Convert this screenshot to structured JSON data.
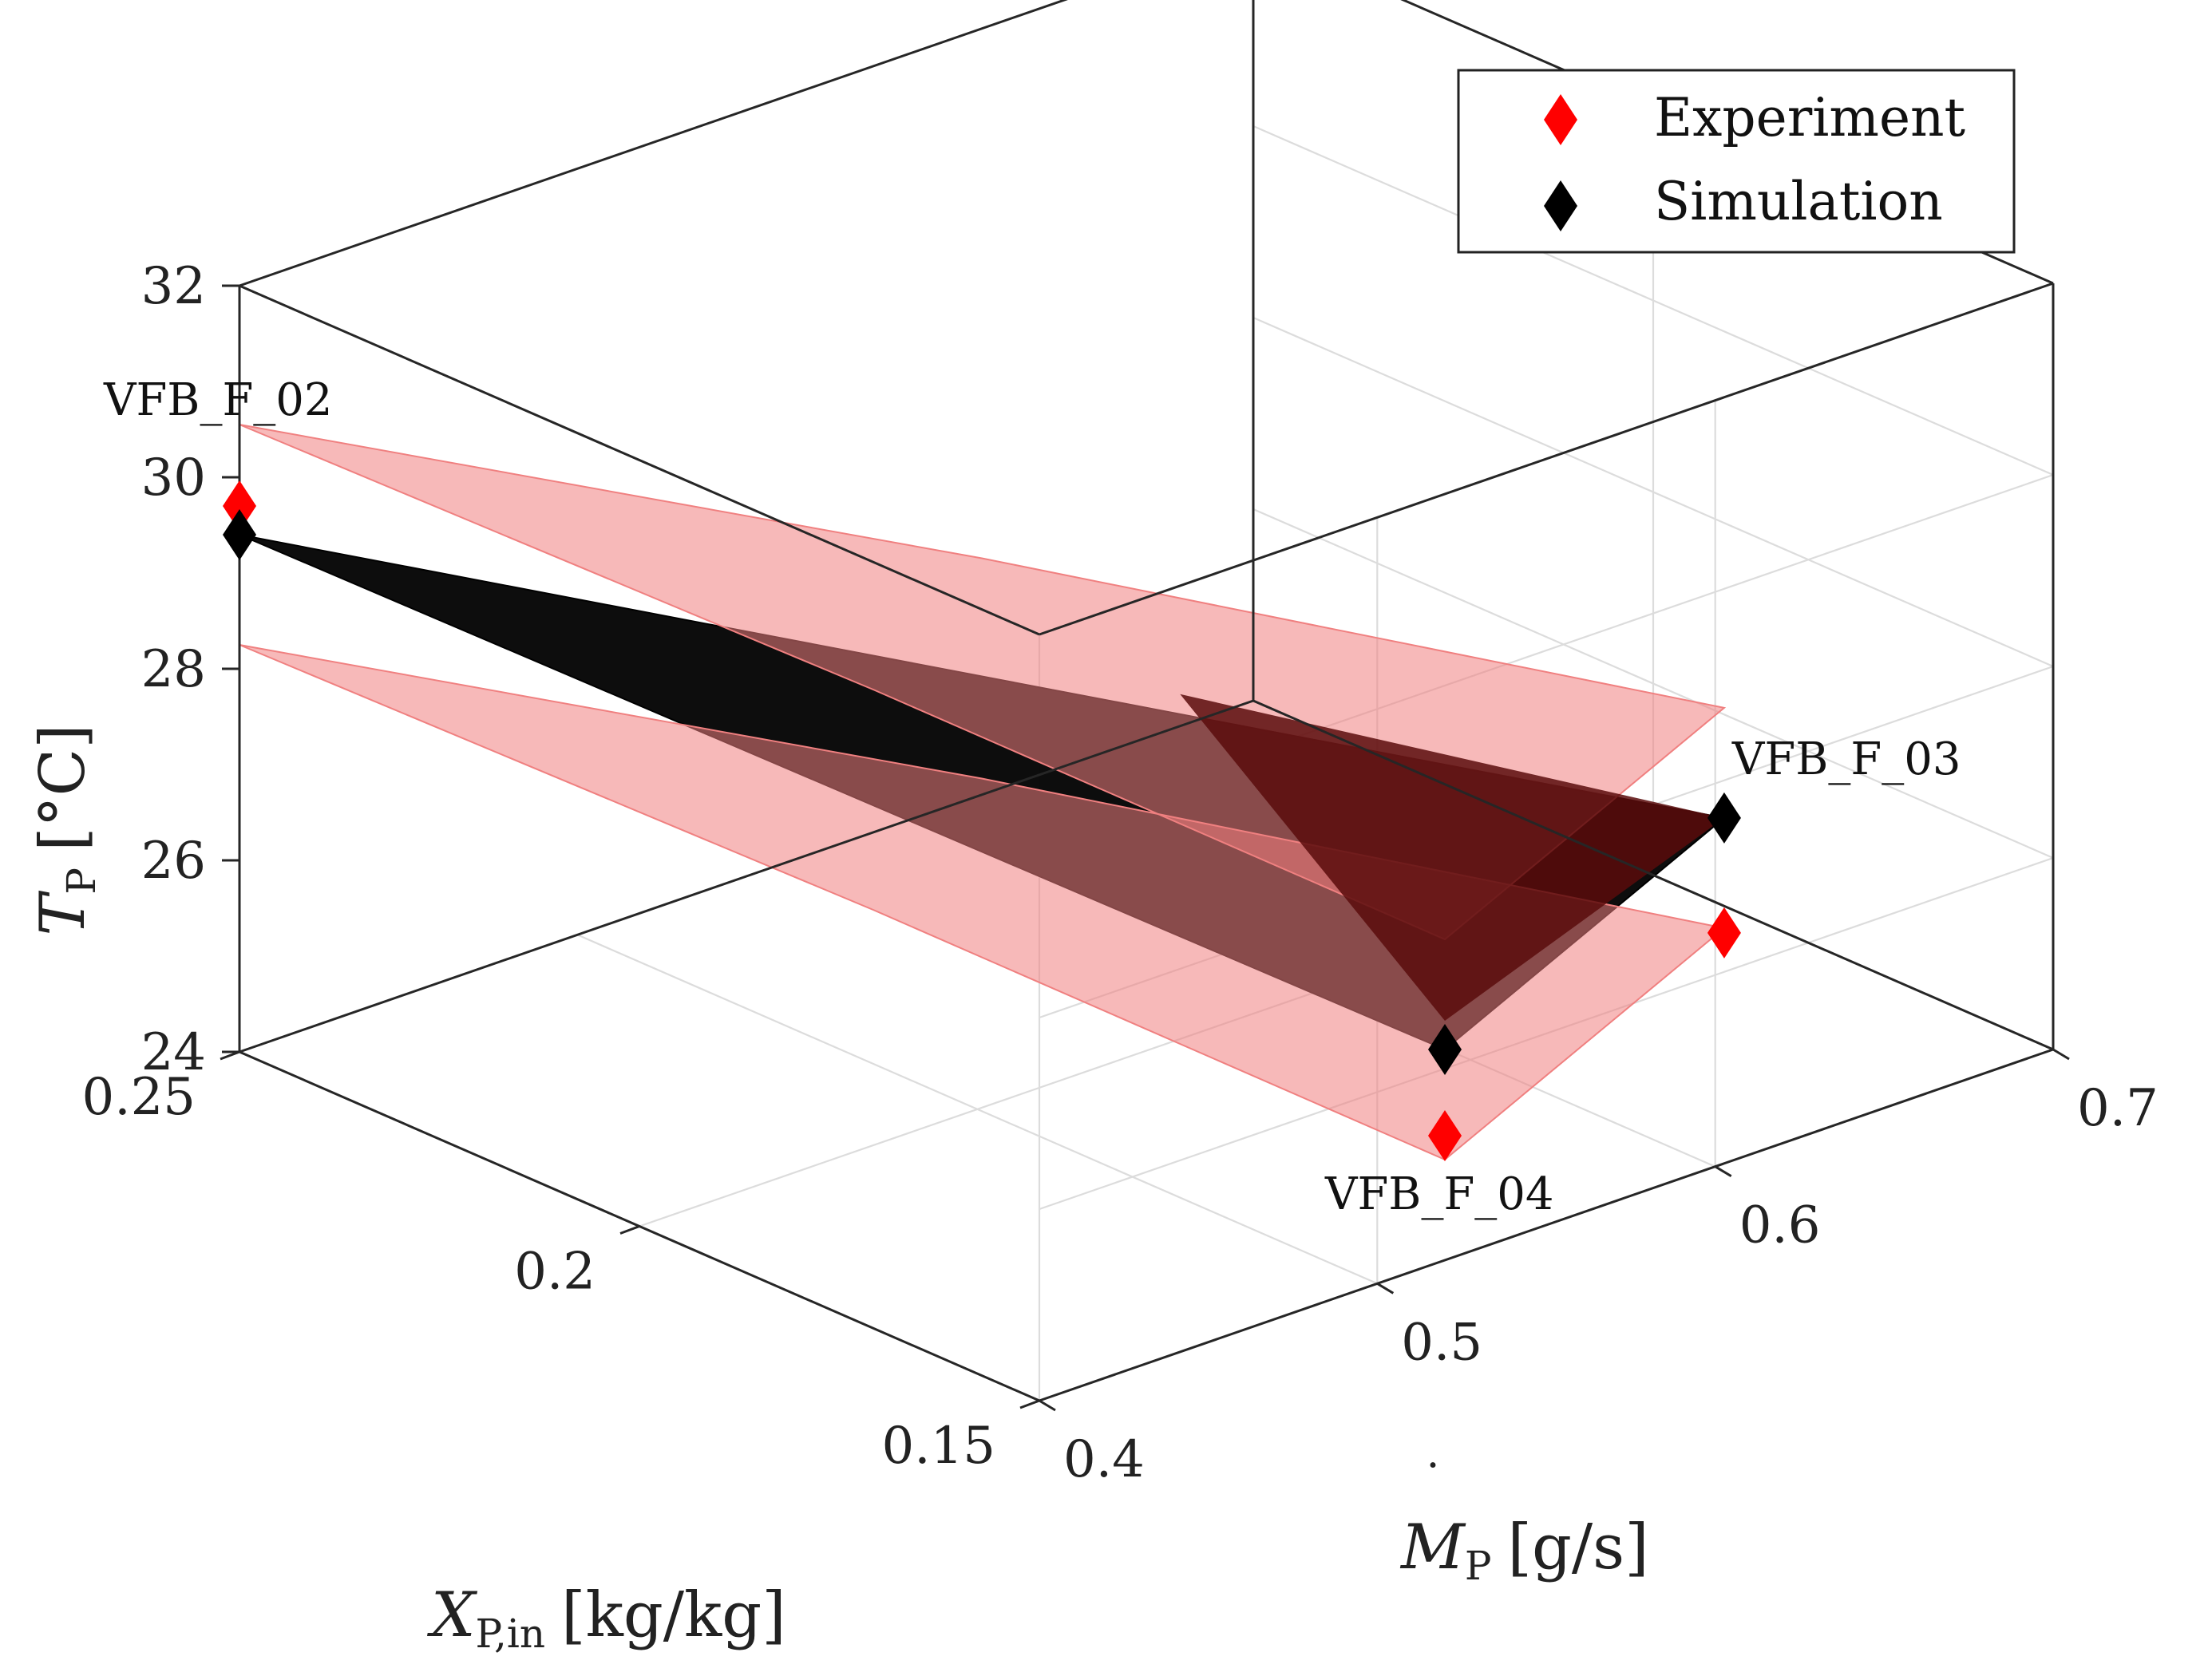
{
  "chart_data": {
    "type": "scatter3d-surface",
    "title": "",
    "xlabel": {
      "main": "X",
      "sub": "P,in",
      "unit": "[kg/kg]"
    },
    "ylabel": {
      "main": "M",
      "sub": "P",
      "unit": "[g/s]"
    },
    "zlabel": {
      "main": "T",
      "sub": "P",
      "unit": "[°C]"
    },
    "xlim": [
      0.15,
      0.25
    ],
    "ylim": [
      0.4,
      0.7
    ],
    "zlim": [
      24,
      32
    ],
    "x_ticks": [
      "0.15",
      "0.2",
      "0.25"
    ],
    "y_ticks": [
      "0.4",
      "0.5",
      "0.6",
      "0.7"
    ],
    "z_ticks": [
      "24",
      "26",
      "28",
      "30",
      "32"
    ],
    "grid": true,
    "legend": {
      "placement": "top-right",
      "entries": [
        {
          "label": "Experiment",
          "color": "#ff0000",
          "marker": "diamond"
        },
        {
          "label": "Simulation",
          "color": "#000000",
          "marker": "diamond"
        }
      ]
    },
    "points": [
      {
        "name": "VFB_F_02",
        "x": 0.25,
        "y": 0.4,
        "experiment": 29.7,
        "simulation": 29.4
      },
      {
        "name": "VFB_F_04",
        "x": 0.15,
        "y": 0.52,
        "experiment": 25.3,
        "simulation": 26.2
      },
      {
        "name": "VFB_F_03",
        "x": 0.17,
        "y": 0.65,
        "experiment": 25.1,
        "simulation": 26.3
      }
    ],
    "surfaces": [
      {
        "name": "simulation-surface",
        "color": "#000000",
        "offset": 0
      },
      {
        "name": "upper-bound-surface",
        "color": "#f08080",
        "offset": 1.15
      },
      {
        "name": "lower-bound-surface",
        "color": "#f08080",
        "offset": -1.15
      }
    ]
  }
}
